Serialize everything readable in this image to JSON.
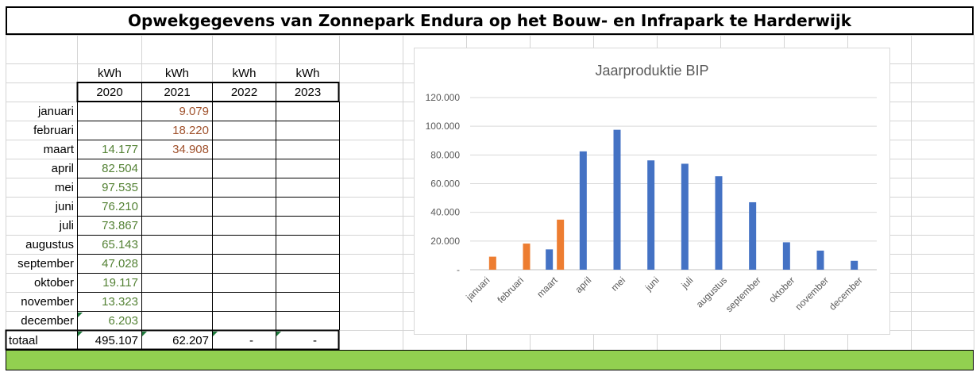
{
  "sheet": {
    "title": "Opwekgegevens van Zonnepark Endura op het Bouw- en Infrapark te Harderwijk"
  },
  "table": {
    "unit_labels": [
      "kWh",
      "kWh",
      "kWh",
      "kWh"
    ],
    "years": [
      "2020",
      "2021",
      "2022",
      "2023"
    ],
    "rows": [
      {
        "month": "januari",
        "values": [
          "",
          "9.079",
          "",
          ""
        ]
      },
      {
        "month": "februari",
        "values": [
          "",
          "18.220",
          "",
          ""
        ]
      },
      {
        "month": "maart",
        "values": [
          "14.177",
          "34.908",
          "",
          ""
        ]
      },
      {
        "month": "april",
        "values": [
          "82.504",
          "",
          "",
          ""
        ]
      },
      {
        "month": "mei",
        "values": [
          "97.535",
          "",
          "",
          ""
        ]
      },
      {
        "month": "juni",
        "values": [
          "76.210",
          "",
          "",
          ""
        ]
      },
      {
        "month": "juli",
        "values": [
          "73.867",
          "",
          "",
          ""
        ]
      },
      {
        "month": "augustus",
        "values": [
          "65.143",
          "",
          "",
          ""
        ]
      },
      {
        "month": "september",
        "values": [
          "47.028",
          "",
          "",
          ""
        ]
      },
      {
        "month": "oktober",
        "values": [
          "19.117",
          "",
          "",
          ""
        ]
      },
      {
        "month": "november",
        "values": [
          "13.323",
          "",
          "",
          ""
        ]
      },
      {
        "month": "december",
        "values": [
          "6.203",
          "",
          "",
          ""
        ]
      }
    ],
    "total": {
      "label": "totaal",
      "values": [
        "495.107",
        "62.207",
        "-",
        "-"
      ]
    },
    "colors": {
      "y2020": "#548235",
      "y2021": "#a0522d"
    }
  },
  "chart_data": {
    "type": "bar",
    "title": "Jaarproduktie BIP",
    "categories": [
      "januari",
      "februari",
      "maart",
      "april",
      "mei",
      "juni",
      "juli",
      "augustus",
      "september",
      "oktober",
      "november",
      "december"
    ],
    "series": [
      {
        "values": [
          0,
          0,
          14177,
          82504,
          97535,
          76210,
          73867,
          65143,
          47028,
          19117,
          13323,
          6203
        ],
        "color": "#4472c4"
      },
      {
        "values": [
          9079,
          18220,
          34908,
          0,
          0,
          0,
          0,
          0,
          0,
          0,
          0,
          0
        ],
        "color": "#ed7d31"
      }
    ],
    "yticks": [
      "-",
      "20.000",
      "40.000",
      "60.000",
      "80.000",
      "100.000",
      "120.000"
    ],
    "ylim": [
      0,
      120000
    ],
    "grid": true,
    "legend": "none"
  }
}
